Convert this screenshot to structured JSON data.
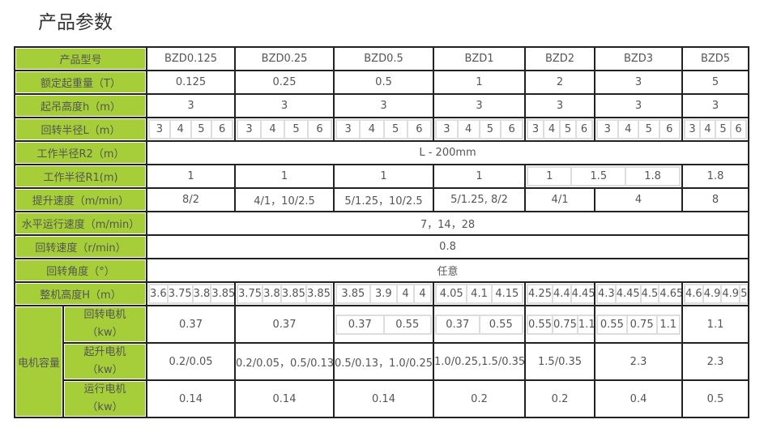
{
  "title": "产品参数",
  "header_label": "产品型号",
  "models": [
    "BZD0.125",
    "BZD0.25",
    "BZD0.5",
    "BZD1",
    "BZD2",
    "BZD3",
    "BZD5"
  ],
  "rows": [
    {
      "label": "额定起重量（T）",
      "cells": [
        {
          "v": [
            "0.125"
          ]
        },
        {
          "v": [
            "0.25"
          ]
        },
        {
          "v": [
            "0.5"
          ]
        },
        {
          "v": [
            "1"
          ]
        },
        {
          "v": [
            "2"
          ]
        },
        {
          "v": [
            "3"
          ]
        },
        {
          "v": [
            "5"
          ]
        }
      ]
    },
    {
      "label": "起吊高度h（m）",
      "cells": [
        {
          "v": [
            "3"
          ]
        },
        {
          "v": [
            "3"
          ]
        },
        {
          "v": [
            "3"
          ]
        },
        {
          "v": [
            "3"
          ]
        },
        {
          "v": [
            "3"
          ]
        },
        {
          "v": [
            "3"
          ]
        },
        {
          "v": [
            "3"
          ]
        }
      ]
    },
    {
      "label": "回转半径L（m）",
      "cells": [
        {
          "v": [
            "3",
            "4",
            "5",
            "6"
          ]
        },
        {
          "v": [
            "3",
            "4",
            "5",
            "6"
          ]
        },
        {
          "v": [
            "3",
            "4",
            "5",
            "6"
          ]
        },
        {
          "v": [
            "3",
            "4",
            "5",
            "6"
          ]
        },
        {
          "v": [
            "3",
            "4",
            "5",
            "6"
          ]
        },
        {
          "v": [
            "3",
            "4",
            "5",
            "6"
          ]
        },
        {
          "v": [
            "3",
            "4",
            "5",
            "6"
          ]
        }
      ]
    },
    {
      "label": "工作半径R2（m）",
      "cells": [
        {
          "span": 7,
          "v": [
            "L - 200mm"
          ]
        }
      ]
    },
    {
      "label": "工作半径R1(m)",
      "cells": [
        {
          "v": [
            "1"
          ]
        },
        {
          "v": [
            "1"
          ]
        },
        {
          "v": [
            "1"
          ]
        },
        {
          "v": [
            "1"
          ]
        },
        {
          "span": 2,
          "v": [
            "1",
            "1.5",
            "1.8"
          ]
        },
        {
          "v": [
            "1.8"
          ]
        }
      ]
    },
    {
      "label": "提升速度（m/min）",
      "cells": [
        {
          "v": [
            "8/2"
          ]
        },
        {
          "v": [
            "4/1，10/2.5"
          ]
        },
        {
          "v": [
            "5/1.25，10/2.5"
          ]
        },
        {
          "v": [
            "5/1.25, 8/2"
          ]
        },
        {
          "v": [
            "4/1"
          ]
        },
        {
          "v": [
            "4"
          ]
        },
        {
          "v": [
            "8"
          ]
        }
      ]
    },
    {
      "label": "水平运行速度（m/min）",
      "cells": [
        {
          "span": 7,
          "v": [
            "7，14，28"
          ]
        }
      ]
    },
    {
      "label": "回转速度（r/min）",
      "cells": [
        {
          "span": 7,
          "v": [
            "0.8"
          ]
        }
      ]
    },
    {
      "label": "回转角度（°）",
      "cells": [
        {
          "span": 7,
          "v": [
            "任意"
          ]
        }
      ]
    },
    {
      "label": "整机高度H（m）",
      "cells": [
        {
          "v": [
            "3.6",
            "3.75",
            "3.8",
            "3.85"
          ]
        },
        {
          "v": [
            "3.75",
            "3.8",
            "3.85",
            "3.85"
          ]
        },
        {
          "v": [
            "3.85",
            "3.9",
            "4",
            "4"
          ]
        },
        {
          "v": [
            "4.05",
            "4.1",
            "4.15"
          ]
        },
        {
          "v": [
            "4.25",
            "4.4",
            "4.45"
          ]
        },
        {
          "v": [
            "4.3",
            "4.45",
            "4.5",
            "4.65"
          ]
        },
        {
          "v": [
            "4.6",
            "4.9",
            "4.9",
            "5"
          ]
        }
      ]
    }
  ],
  "motor": {
    "group_label": "电机容量",
    "rows": [
      {
        "label": "回转电机",
        "unit": "（kw）",
        "cells": [
          {
            "v": [
              "0.37"
            ]
          },
          {
            "v": [
              "0.37"
            ]
          },
          {
            "v": [
              "0.37",
              "0.55"
            ]
          },
          {
            "v": [
              "0.37",
              "0.55"
            ]
          },
          {
            "v": [
              "0.55",
              "0.75",
              "1.1"
            ]
          },
          {
            "v": [
              "0.55",
              "0.75",
              "1.1"
            ]
          },
          {
            "v": [
              "1.1"
            ]
          }
        ]
      },
      {
        "label": "起升电机",
        "unit": "（kw）",
        "cells": [
          {
            "v": [
              "0.2/0.05"
            ]
          },
          {
            "v": [
              "0.2/0.05，0.5/0.13"
            ]
          },
          {
            "v": [
              "0.5/0.13，1.0/0.25"
            ]
          },
          {
            "v": [
              "1.0/0.25,1.5/0.35"
            ]
          },
          {
            "v": [
              "1.5/0.35"
            ]
          },
          {
            "v": [
              "2.3"
            ]
          },
          {
            "v": [
              "2.3"
            ]
          }
        ]
      },
      {
        "label": "运行电机",
        "unit": "（kw）",
        "cells": [
          {
            "v": [
              "0.14"
            ]
          },
          {
            "v": [
              "0.14"
            ]
          },
          {
            "v": [
              "0.14"
            ]
          },
          {
            "v": [
              "0.2"
            ]
          },
          {
            "v": [
              "0.2"
            ]
          },
          {
            "v": [
              "0.4"
            ]
          },
          {
            "v": [
              "0.5"
            ]
          }
        ]
      }
    ]
  },
  "colors": {
    "label_bg": "#a6ce39",
    "border": "#222222",
    "sub_border": "#dddddd"
  }
}
